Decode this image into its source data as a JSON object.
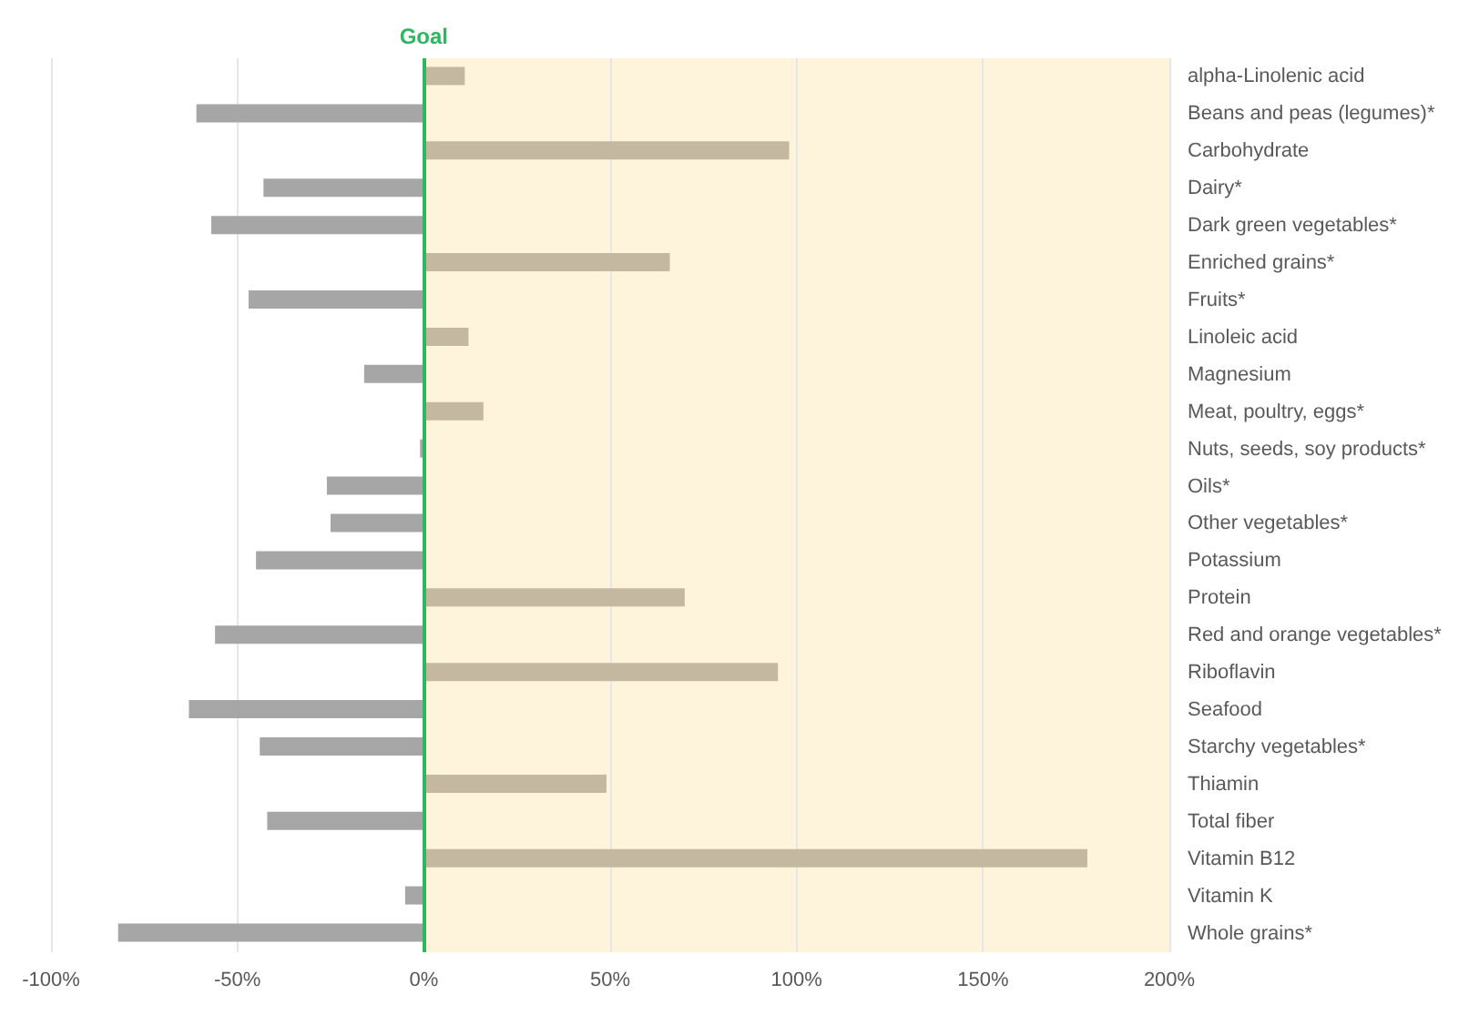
{
  "chart_data": {
    "type": "bar",
    "orientation": "horizontal",
    "categories": [
      "alpha-Linolenic acid",
      "Beans and peas (legumes)*",
      "Carbohydrate",
      "Dairy*",
      "Dark green vegetables*",
      "Enriched grains*",
      "Fruits*",
      "Linoleic acid",
      "Magnesium",
      "Meat, poultry, eggs*",
      "Nuts, seeds, soy products*",
      "Oils*",
      "Other vegetables*",
      "Potassium",
      "Protein",
      "Red and orange vegetables*",
      "Riboflavin",
      "Seafood",
      "Starchy vegetables*",
      "Thiamin",
      "Total fiber",
      "Vitamin B12",
      "Vitamin K",
      "Whole grains*"
    ],
    "values": [
      11,
      -61,
      98,
      -43,
      -57,
      66,
      -47,
      12,
      -16,
      16,
      -1,
      -26,
      -25,
      -45,
      70,
      -56,
      95,
      -63,
      -44,
      49,
      -42,
      178,
      -5,
      -82
    ],
    "colors": [
      "#c4b9a0",
      "#a6a6a6",
      "#c4b9a0",
      "#a6a6a6",
      "#a6a6a6",
      "#c4b9a0",
      "#a6a6a6",
      "#c4b9a0",
      "#a6a6a6",
      "#c4b9a0",
      "#a6a6a6",
      "#a6a6a6",
      "#a6a6a6",
      "#a6a6a6",
      "#c4b9a0",
      "#a6a6a6",
      "#c4b9a0",
      "#a6a6a6",
      "#a6a6a6",
      "#c4b9a0",
      "#a6a6a6",
      "#c4b9a0",
      "#a6a6a6",
      "#a6a6a6"
    ],
    "xlim": [
      -100,
      200
    ],
    "xticks": [
      {
        "value": -100,
        "label": "-100%"
      },
      {
        "value": -50,
        "label": "-50%"
      },
      {
        "value": 0,
        "label": "0%"
      },
      {
        "value": 50,
        "label": "50%"
      },
      {
        "value": 100,
        "label": "100%"
      },
      {
        "value": 150,
        "label": "150%"
      },
      {
        "value": 200,
        "label": "200%"
      }
    ],
    "ref_lines": [
      {
        "axis": "x",
        "value": 0,
        "label": "Goal",
        "color": "#2bb85f"
      }
    ],
    "bands": [
      {
        "axis": "x",
        "from": 0,
        "to": 200,
        "color": "#fef4dc"
      }
    ],
    "grid": "x"
  }
}
